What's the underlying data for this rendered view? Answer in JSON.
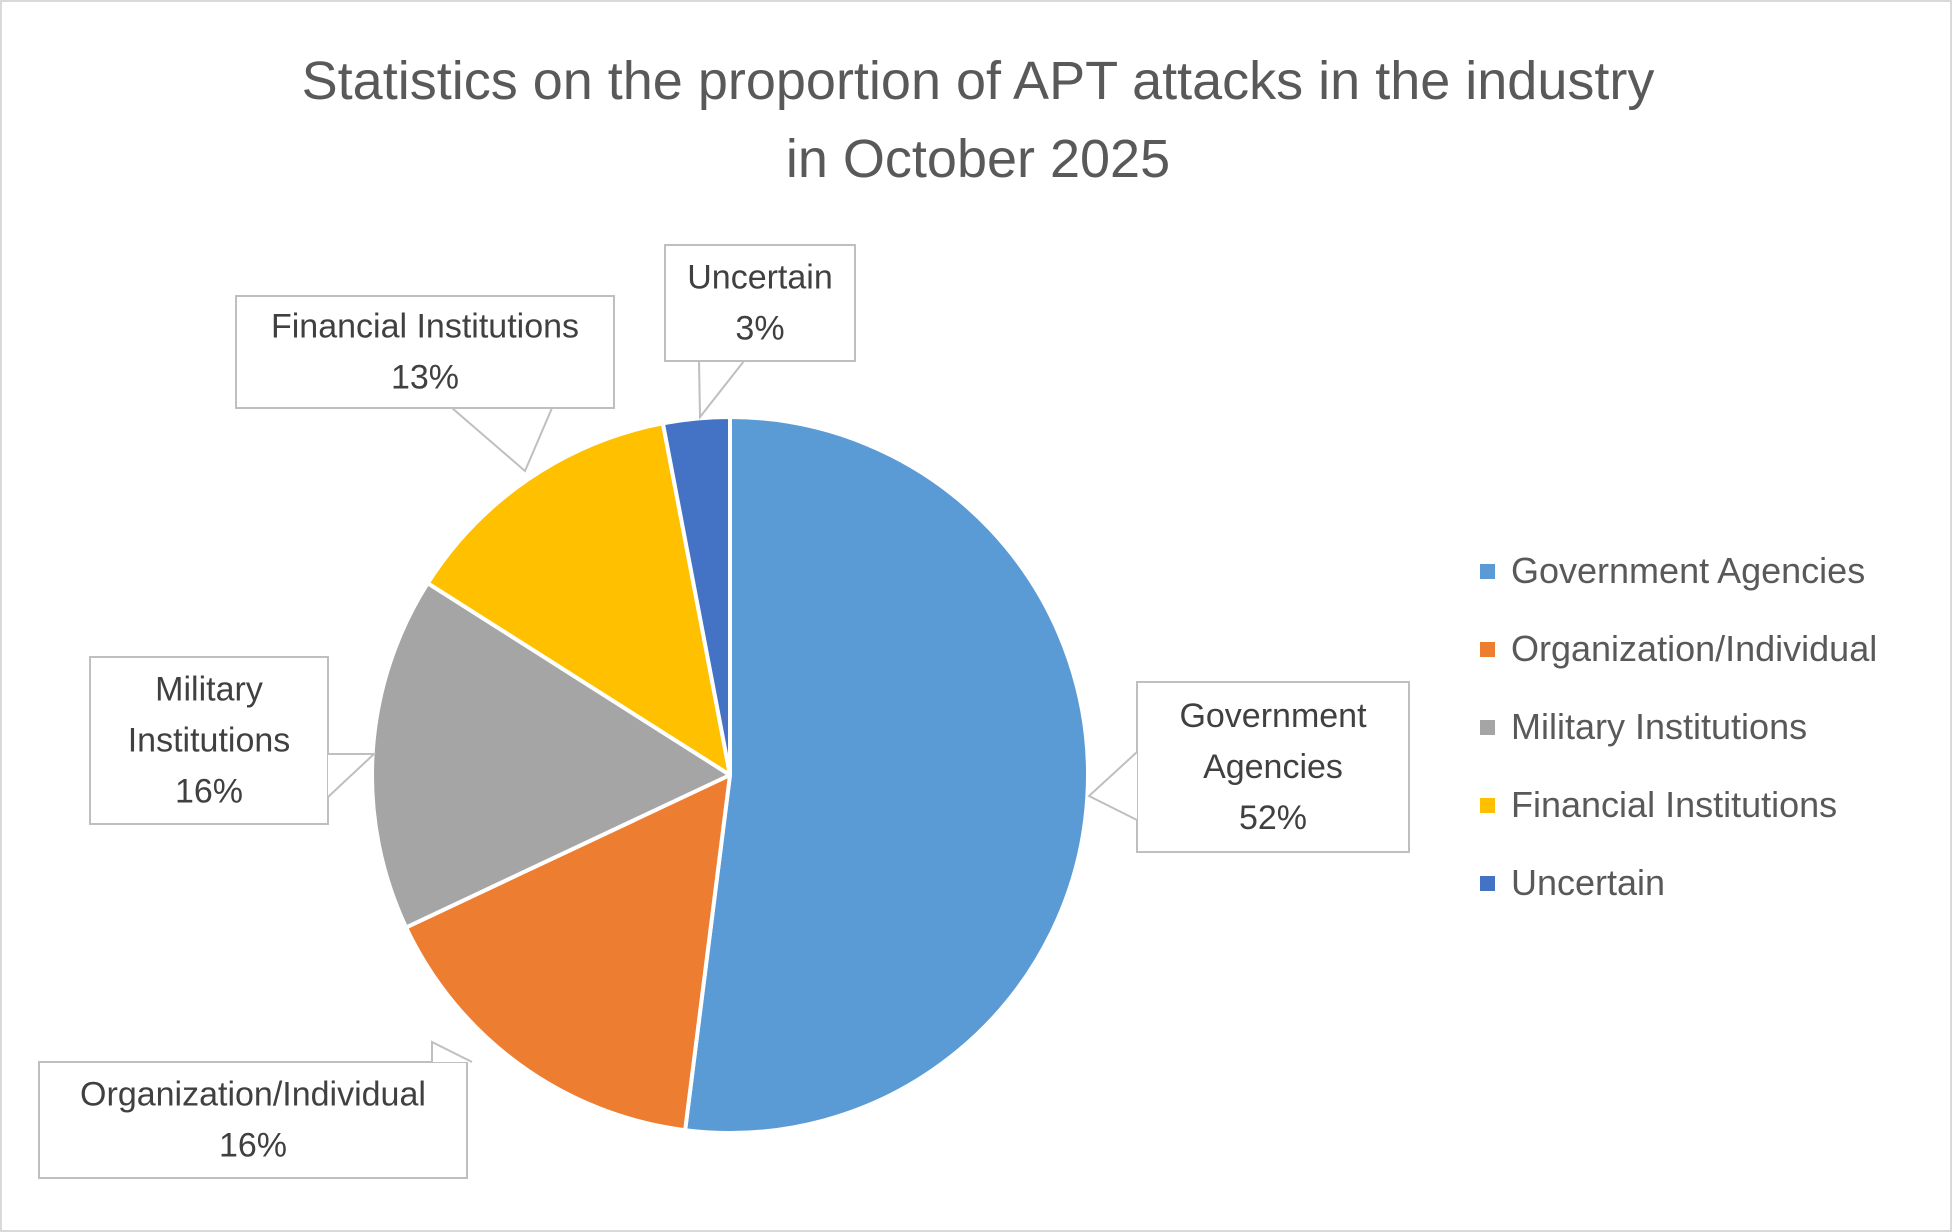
{
  "chart_data": {
    "type": "pie",
    "title_lines": [
      "Statistics on the proportion of APT attacks in the industry",
      "in October 2025"
    ],
    "slices": [
      {
        "name": "Government Agencies",
        "value": 52,
        "label_lines": [
          "Government",
          "Agencies",
          "52%"
        ],
        "color": "#5b9bd5"
      },
      {
        "name": "Organization/Individual",
        "value": 16,
        "label_lines": [
          "Organization/Individual",
          "16%"
        ],
        "color": "#ed7d31"
      },
      {
        "name": "Military Institutions",
        "value": 16,
        "label_lines": [
          "Military",
          "Institutions",
          "16%"
        ],
        "color": "#a5a5a5"
      },
      {
        "name": "Financial Institutions",
        "value": 13,
        "label_lines": [
          "Financial Institutions",
          "13%"
        ],
        "color": "#ffc000"
      },
      {
        "name": "Uncertain",
        "value": 3,
        "label_lines": [
          "Uncertain",
          "3%"
        ],
        "color": "#4472c4"
      }
    ],
    "legend_position": "right"
  }
}
